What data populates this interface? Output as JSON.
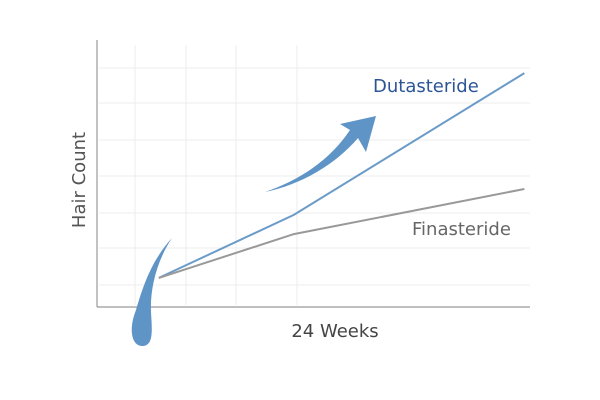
{
  "chart_data": {
    "type": "line",
    "y_label": "Hair Count",
    "x_label": "24 Weeks",
    "x": [
      0,
      24,
      65
    ],
    "xlim": [
      -11,
      66
    ],
    "ylim": [
      0,
      100
    ],
    "series": [
      {
        "name": "Dutasteride",
        "color": "#6b9bc8",
        "label_color": "#2c5596",
        "values": [
          10.9,
          34.5,
          87.6
        ]
      },
      {
        "name": "Finasteride",
        "color": "#999999",
        "label_color": "#666666",
        "values": [
          10.9,
          27.3,
          44.2
        ]
      }
    ]
  }
}
